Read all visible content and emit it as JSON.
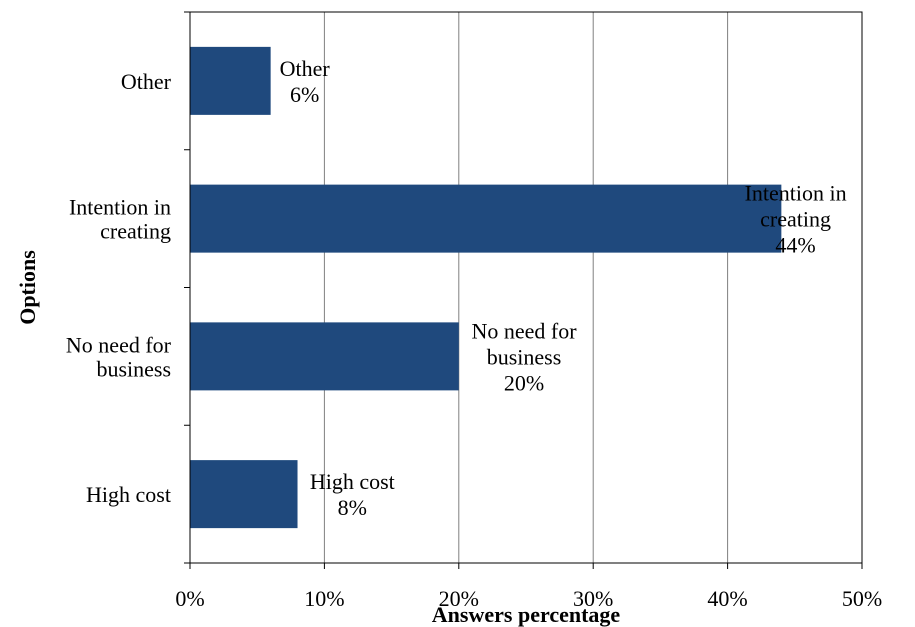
{
  "chart_data": {
    "type": "bar",
    "orientation": "horizontal",
    "categories": [
      "High cost",
      "No need for business",
      "Intention in creating",
      "Other"
    ],
    "category_label_lines": [
      [
        "High cost"
      ],
      [
        "No need for",
        "business"
      ],
      [
        "Intention in",
        "creating"
      ],
      [
        "Other"
      ]
    ],
    "values": [
      8,
      20,
      44,
      6
    ],
    "value_unit": "%",
    "data_label_lines": [
      [
        "High cost",
        "8%"
      ],
      [
        "No need for",
        "business",
        "20%"
      ],
      [
        "Intention in",
        "creating",
        "44%"
      ],
      [
        "Other",
        "6%"
      ]
    ],
    "xlabel": "Answers percentage",
    "ylabel": "Options",
    "xlim": [
      0,
      50
    ],
    "x_ticks": [
      "0%",
      "10%",
      "20%",
      "30%",
      "40%",
      "50%"
    ],
    "x_tick_values": [
      0,
      10,
      20,
      30,
      40,
      50
    ],
    "grid": "vertical",
    "legend": "none",
    "bar_color": "#1F497D"
  }
}
